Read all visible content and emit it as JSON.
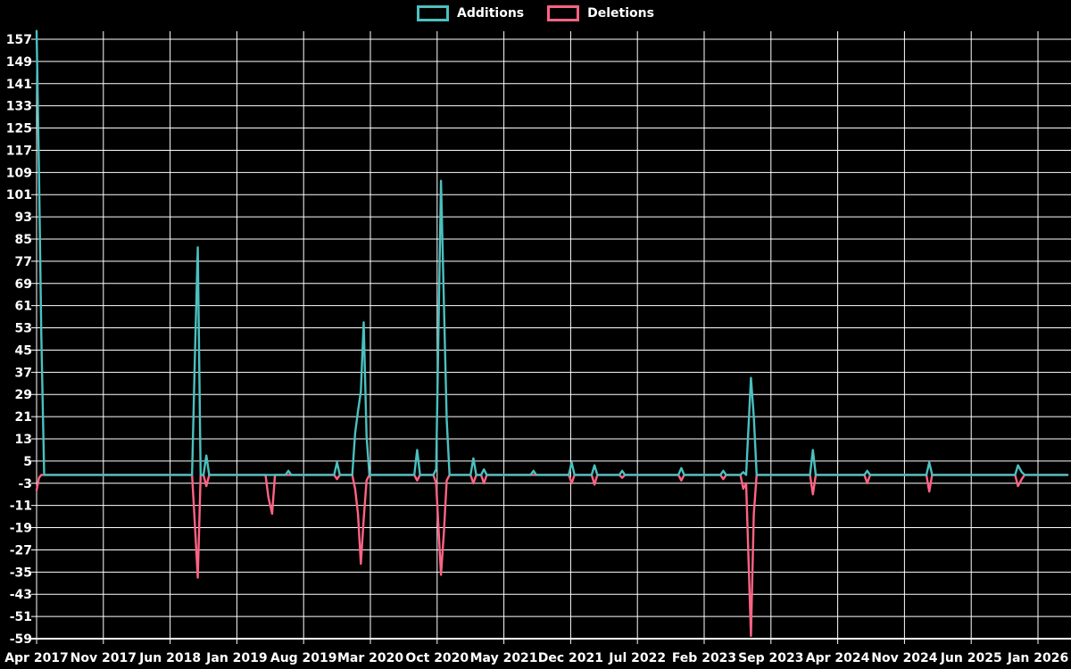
{
  "chart_data": {
    "type": "line",
    "title": "",
    "background_color": "#000000",
    "grid_color": "#ffffff",
    "text_color": "#ffffff",
    "legend_position": "top-center",
    "grid": "on",
    "series": [
      {
        "name": "Additions",
        "color": "#4BC0C0",
        "key": "a"
      },
      {
        "name": "Deletions",
        "color": "#FF6384",
        "key": "d"
      }
    ],
    "y_axis": {
      "min": -59,
      "max": 157,
      "tick_step": 8,
      "tick_labels": [
        157,
        149,
        141,
        133,
        125,
        117,
        109,
        101,
        93,
        85,
        77,
        69,
        61,
        53,
        45,
        37,
        29,
        21,
        13,
        5,
        -3,
        -11,
        -19,
        -27,
        -35,
        -43,
        -51,
        -59
      ]
    },
    "x_axis": {
      "months_span": 105,
      "months_per_tick": 7,
      "tick_labels": [
        "Apr 2017",
        "Nov 2017",
        "Jun 2018",
        "Jan 2019",
        "Aug 2019",
        "Mar 2020",
        "Oct 2020",
        "May 2021",
        "Dec 2021",
        "Jul 2022",
        "Feb 2023",
        "Sep 2023",
        "Apr 2024",
        "Nov 2024",
        "Jun 2025",
        "Jan 2026"
      ]
    },
    "baseline_value": 0,
    "events": [
      {
        "m": 0.0,
        "a": 160,
        "d": -5.5
      },
      {
        "m": 0.25,
        "a": 109,
        "d": -1
      },
      {
        "m": 0.5,
        "a": 50,
        "d": 0
      },
      {
        "m": 16.6,
        "a": 43,
        "d": -18
      },
      {
        "m": 16.9,
        "a": 82,
        "d": -37
      },
      {
        "m": 17.8,
        "a": 7,
        "d": -4
      },
      {
        "m": 24.3,
        "a": 0,
        "d": -8
      },
      {
        "m": 24.7,
        "a": 0,
        "d": -14
      },
      {
        "m": 26.4,
        "a": 1.5,
        "d": 0
      },
      {
        "m": 31.5,
        "a": 4.5,
        "d": -1.5
      },
      {
        "m": 33.4,
        "a": 15,
        "d": -5
      },
      {
        "m": 33.7,
        "a": 23,
        "d": -14
      },
      {
        "m": 34.0,
        "a": 30,
        "d": -32
      },
      {
        "m": 34.3,
        "a": 55,
        "d": -16
      },
      {
        "m": 34.6,
        "a": 14,
        "d": -2
      },
      {
        "m": 39.9,
        "a": 9,
        "d": -2
      },
      {
        "m": 41.9,
        "a": 2,
        "d": -3
      },
      {
        "m": 42.4,
        "a": 106,
        "d": -36
      },
      {
        "m": 42.7,
        "a": 63,
        "d": -21
      },
      {
        "m": 43.0,
        "a": 20,
        "d": -2
      },
      {
        "m": 45.8,
        "a": 6,
        "d": -3
      },
      {
        "m": 46.9,
        "a": 2,
        "d": -3
      },
      {
        "m": 52.1,
        "a": 1.5,
        "d": 0
      },
      {
        "m": 56.1,
        "a": 4.5,
        "d": -3
      },
      {
        "m": 58.5,
        "a": 3.5,
        "d": -3.5
      },
      {
        "m": 61.4,
        "a": 1.5,
        "d": -1
      },
      {
        "m": 67.6,
        "a": 2.5,
        "d": -2
      },
      {
        "m": 72.0,
        "a": 1.5,
        "d": -1.5
      },
      {
        "m": 74.1,
        "a": 1,
        "d": -5
      },
      {
        "m": 74.4,
        "a": 0,
        "d": -3
      },
      {
        "m": 74.9,
        "a": 35,
        "d": -58
      },
      {
        "m": 75.2,
        "a": 21,
        "d": -14
      },
      {
        "m": 81.4,
        "a": 9,
        "d": -7
      },
      {
        "m": 87.1,
        "a": 1.5,
        "d": -3
      },
      {
        "m": 93.6,
        "a": 4.5,
        "d": -6
      },
      {
        "m": 102.9,
        "a": 3.5,
        "d": -4
      },
      {
        "m": 103.3,
        "a": 1,
        "d": -1.5
      }
    ]
  }
}
